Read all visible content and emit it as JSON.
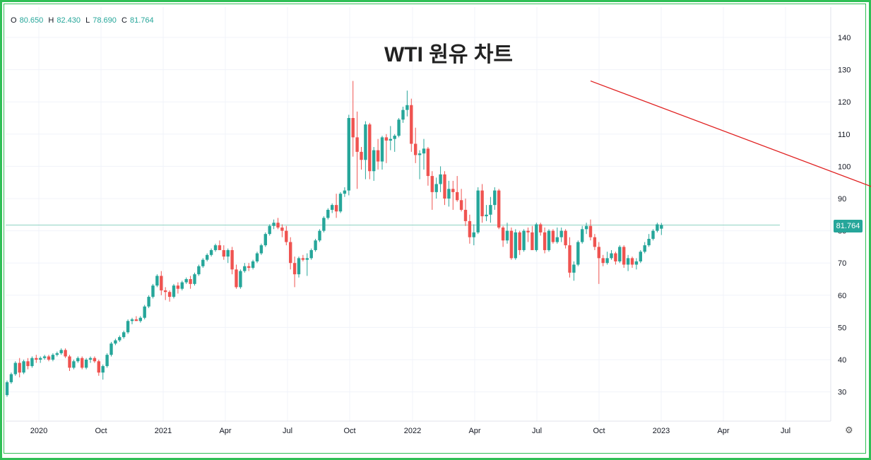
{
  "title": "WTI 원유 차트",
  "ohlc": {
    "o_label": "O",
    "o": "80.650",
    "h_label": "H",
    "h": "82.430",
    "l_label": "L",
    "l": "78.690",
    "c_label": "C",
    "c": "81.764"
  },
  "last_price": "81.764",
  "colors": {
    "up": "#26a69a",
    "down": "#ef5350",
    "trend": "#e02020",
    "frame": "#2fbf55"
  },
  "icons": {
    "settings": "gear-icon"
  },
  "chart_data": {
    "type": "candlestick",
    "interval": "weekly",
    "x_ticks": [
      "2020",
      "Oct",
      "2021",
      "Apr",
      "Jul",
      "Oct",
      "2022",
      "Apr",
      "Jul",
      "Oct",
      "2023",
      "Apr",
      "Jul"
    ],
    "y_ticks": [
      30,
      40,
      50,
      60,
      70,
      80,
      90,
      100,
      110,
      120,
      130,
      140
    ],
    "ylim": [
      18.5,
      145.5
    ],
    "price_line": 81.764,
    "trendline": {
      "from": {
        "week": 140.0,
        "price": 126.5
      },
      "to": {
        "week": 250.0,
        "price": 73.0
      }
    },
    "ohlc": [
      [
        29.0,
        33.5,
        28.5,
        33.0
      ],
      [
        33.0,
        36.0,
        32.5,
        35.5
      ],
      [
        35.5,
        39.5,
        35.0,
        39.0
      ],
      [
        39.0,
        40.5,
        34.5,
        36.0
      ],
      [
        36.0,
        40.0,
        35.5,
        39.5
      ],
      [
        39.5,
        40.5,
        37.0,
        38.0
      ],
      [
        38.0,
        41.0,
        37.5,
        40.5
      ],
      [
        40.5,
        41.5,
        39.0,
        40.0
      ],
      [
        40.0,
        41.0,
        39.0,
        40.5
      ],
      [
        40.5,
        41.5,
        40.0,
        41.0
      ],
      [
        41.0,
        41.5,
        39.5,
        40.0
      ],
      [
        40.0,
        42.0,
        39.5,
        41.5
      ],
      [
        41.5,
        42.5,
        41.0,
        42.0
      ],
      [
        42.0,
        43.5,
        41.5,
        43.0
      ],
      [
        43.0,
        43.5,
        40.5,
        41.0
      ],
      [
        41.0,
        41.5,
        36.5,
        37.5
      ],
      [
        37.5,
        40.0,
        37.0,
        39.5
      ],
      [
        39.5,
        41.0,
        39.0,
        40.5
      ],
      [
        40.5,
        41.0,
        37.0,
        37.5
      ],
      [
        37.5,
        40.5,
        37.0,
        40.0
      ],
      [
        40.0,
        41.0,
        39.0,
        40.5
      ],
      [
        40.5,
        41.0,
        39.0,
        39.5
      ],
      [
        39.5,
        40.0,
        35.0,
        36.0
      ],
      [
        36.0,
        38.5,
        33.8,
        38.0
      ],
      [
        38.0,
        42.0,
        37.5,
        41.5
      ],
      [
        41.5,
        45.5,
        41.0,
        45.0
      ],
      [
        45.0,
        46.5,
        44.5,
        46.0
      ],
      [
        46.0,
        47.5,
        45.5,
        47.0
      ],
      [
        47.0,
        49.0,
        46.5,
        48.5
      ],
      [
        48.5,
        52.5,
        48.0,
        52.0
      ],
      [
        52.0,
        53.0,
        51.0,
        52.5
      ],
      [
        52.5,
        53.5,
        52.0,
        52.0
      ],
      [
        52.0,
        53.5,
        51.5,
        53.0
      ],
      [
        53.0,
        57.0,
        52.5,
        56.5
      ],
      [
        56.5,
        60.0,
        56.0,
        59.5
      ],
      [
        59.5,
        63.5,
        59.0,
        63.0
      ],
      [
        63.0,
        66.5,
        62.5,
        66.0
      ],
      [
        66.0,
        67.5,
        60.0,
        61.5
      ],
      [
        61.5,
        62.5,
        58.5,
        61.0
      ],
      [
        61.0,
        61.5,
        58.0,
        59.5
      ],
      [
        59.5,
        63.5,
        59.0,
        63.0
      ],
      [
        63.0,
        64.0,
        60.5,
        62.0
      ],
      [
        62.0,
        64.5,
        61.5,
        64.0
      ],
      [
        64.0,
        65.5,
        63.5,
        65.0
      ],
      [
        65.0,
        66.0,
        62.0,
        63.5
      ],
      [
        63.5,
        67.0,
        63.0,
        66.5
      ],
      [
        66.5,
        69.5,
        66.0,
        69.0
      ],
      [
        69.0,
        71.5,
        68.5,
        71.0
      ],
      [
        71.0,
        73.0,
        70.5,
        72.5
      ],
      [
        72.5,
        74.5,
        72.0,
        74.0
      ],
      [
        74.0,
        76.0,
        73.5,
        75.5
      ],
      [
        75.5,
        77.0,
        75.0,
        74.0
      ],
      [
        74.0,
        75.5,
        71.0,
        72.0
      ],
      [
        72.0,
        74.5,
        70.0,
        74.0
      ],
      [
        74.0,
        75.0,
        66.5,
        68.0
      ],
      [
        68.0,
        69.5,
        62.0,
        62.5
      ],
      [
        62.5,
        68.0,
        62.0,
        67.5
      ],
      [
        67.5,
        70.0,
        67.0,
        69.0
      ],
      [
        69.0,
        70.0,
        67.5,
        68.5
      ],
      [
        68.5,
        71.0,
        68.0,
        70.5
      ],
      [
        70.5,
        73.5,
        70.0,
        73.0
      ],
      [
        73.0,
        76.0,
        72.5,
        75.5
      ],
      [
        75.5,
        79.5,
        75.0,
        79.0
      ],
      [
        79.0,
        82.0,
        78.5,
        81.5
      ],
      [
        81.5,
        83.5,
        80.5,
        82.5
      ],
      [
        82.5,
        84.0,
        80.5,
        81.0
      ],
      [
        81.0,
        82.0,
        78.0,
        80.0
      ],
      [
        80.0,
        81.5,
        75.5,
        76.5
      ],
      [
        76.5,
        78.0,
        68.0,
        70.0
      ],
      [
        70.0,
        72.0,
        62.5,
        66.5
      ],
      [
        66.5,
        72.0,
        65.5,
        71.5
      ],
      [
        71.5,
        72.5,
        70.5,
        71.0
      ],
      [
        71.0,
        73.0,
        66.0,
        71.5
      ],
      [
        71.5,
        74.5,
        71.0,
        74.0
      ],
      [
        74.0,
        77.5,
        73.5,
        77.0
      ],
      [
        77.0,
        80.5,
        76.5,
        80.0
      ],
      [
        80.0,
        84.5,
        79.5,
        84.0
      ],
      [
        84.0,
        87.0,
        83.5,
        86.5
      ],
      [
        86.5,
        88.5,
        85.5,
        88.0
      ],
      [
        88.0,
        91.5,
        84.0,
        86.0
      ],
      [
        86.0,
        92.0,
        85.5,
        91.5
      ],
      [
        91.5,
        93.5,
        90.5,
        92.5
      ],
      [
        92.5,
        116.0,
        91.0,
        115.0
      ],
      [
        115.0,
        126.5,
        103.0,
        109.0
      ],
      [
        109.0,
        117.0,
        93.0,
        104.5
      ],
      [
        104.5,
        106.0,
        99.0,
        102.0
      ],
      [
        102.0,
        114.0,
        96.0,
        113.0
      ],
      [
        113.0,
        113.5,
        96.0,
        98.5
      ],
      [
        98.5,
        106.0,
        95.5,
        105.0
      ],
      [
        105.0,
        108.5,
        99.0,
        101.5
      ],
      [
        101.5,
        109.5,
        99.0,
        109.0
      ],
      [
        109.0,
        110.0,
        101.0,
        108.0
      ],
      [
        108.0,
        112.5,
        105.0,
        108.5
      ],
      [
        108.5,
        110.0,
        104.5,
        109.5
      ],
      [
        109.5,
        115.0,
        109.0,
        114.5
      ],
      [
        114.5,
        118.5,
        113.5,
        117.5
      ],
      [
        117.5,
        123.5,
        115.5,
        119.0
      ],
      [
        119.0,
        121.0,
        104.5,
        107.0
      ],
      [
        107.0,
        112.0,
        101.0,
        103.5
      ],
      [
        103.5,
        105.0,
        96.0,
        104.0
      ],
      [
        104.0,
        108.5,
        99.0,
        105.5
      ],
      [
        105.5,
        106.0,
        94.0,
        97.0
      ],
      [
        97.0,
        98.5,
        86.5,
        92.0
      ],
      [
        92.0,
        96.5,
        90.0,
        94.5
      ],
      [
        94.5,
        100.0,
        92.0,
        97.5
      ],
      [
        97.5,
        98.5,
        88.0,
        90.0
      ],
      [
        90.0,
        95.5,
        87.5,
        93.0
      ],
      [
        93.0,
        95.5,
        86.5,
        92.0
      ],
      [
        92.0,
        97.0,
        89.0,
        89.5
      ],
      [
        89.5,
        93.0,
        86.0,
        86.5
      ],
      [
        86.5,
        90.0,
        81.5,
        83.0
      ],
      [
        83.0,
        85.0,
        76.0,
        78.0
      ],
      [
        78.0,
        82.0,
        75.5,
        79.5
      ],
      [
        79.5,
        93.5,
        79.0,
        92.5
      ],
      [
        92.5,
        94.5,
        82.5,
        84.5
      ],
      [
        84.5,
        88.0,
        83.0,
        85.0
      ],
      [
        85.0,
        90.5,
        82.5,
        88.0
      ],
      [
        88.0,
        93.5,
        86.5,
        92.5
      ],
      [
        92.5,
        93.0,
        80.5,
        81.0
      ],
      [
        81.0,
        81.5,
        75.0,
        77.0
      ],
      [
        77.0,
        82.5,
        76.0,
        80.0
      ],
      [
        80.0,
        81.0,
        71.0,
        71.5
      ],
      [
        71.5,
        80.5,
        71.0,
        79.5
      ],
      [
        79.5,
        80.0,
        72.5,
        74.0
      ],
      [
        74.0,
        80.5,
        73.5,
        80.0
      ],
      [
        80.0,
        81.0,
        76.5,
        79.5
      ],
      [
        79.5,
        81.5,
        75.0,
        74.0
      ],
      [
        74.0,
        82.5,
        73.5,
        82.0
      ],
      [
        82.0,
        82.5,
        78.5,
        79.5
      ],
      [
        79.5,
        81.0,
        73.0,
        74.0
      ],
      [
        74.0,
        80.5,
        73.5,
        80.0
      ],
      [
        80.0,
        80.5,
        76.0,
        76.5
      ],
      [
        76.5,
        81.0,
        76.0,
        78.0
      ],
      [
        78.0,
        81.0,
        76.5,
        80.0
      ],
      [
        80.0,
        80.5,
        74.5,
        75.5
      ],
      [
        75.5,
        78.0,
        65.5,
        67.0
      ],
      [
        67.0,
        70.5,
        64.5,
        69.5
      ],
      [
        69.5,
        77.0,
        69.0,
        76.5
      ],
      [
        76.5,
        81.5,
        76.0,
        80.5
      ],
      [
        80.5,
        82.5,
        79.0,
        81.5
      ],
      [
        81.5,
        83.5,
        77.0,
        78.0
      ],
      [
        78.0,
        79.0,
        74.0,
        75.0
      ],
      [
        75.0,
        76.5,
        63.5,
        71.5
      ],
      [
        71.5,
        72.5,
        69.0,
        70.0
      ],
      [
        70.0,
        73.5,
        69.5,
        71.5
      ],
      [
        71.5,
        74.0,
        71.0,
        73.0
      ],
      [
        73.0,
        73.5,
        69.5,
        70.5
      ],
      [
        70.5,
        75.5,
        70.0,
        75.0
      ],
      [
        75.0,
        75.5,
        68.5,
        69.5
      ],
      [
        69.5,
        72.5,
        67.5,
        71.5
      ],
      [
        71.5,
        72.0,
        68.5,
        69.5
      ],
      [
        69.5,
        71.5,
        68.0,
        70.5
      ],
      [
        70.5,
        74.0,
        70.0,
        73.5
      ],
      [
        73.5,
        76.5,
        73.0,
        75.5
      ],
      [
        75.5,
        79.0,
        75.0,
        77.5
      ],
      [
        77.5,
        80.5,
        77.0,
        80.0
      ],
      [
        80.0,
        82.5,
        79.5,
        82.0
      ],
      [
        80.65,
        82.43,
        78.69,
        81.764
      ]
    ]
  }
}
